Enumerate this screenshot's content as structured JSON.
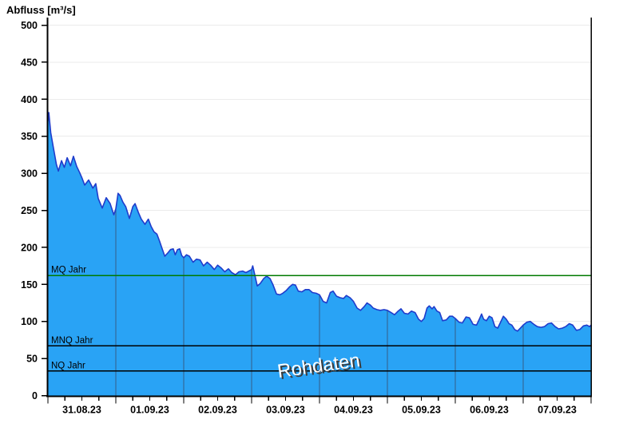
{
  "title": "Abfluss [m³/s]",
  "watermark": "Rohdaten",
  "colors": {
    "area_fill": "#29a3f5",
    "curve_line": "#1f3ccc",
    "h_grid": "#ebebeb",
    "day_grid": "#355c86",
    "mq_line": "#007a00",
    "low_lines": "#000000",
    "axis": "#000000",
    "text": "#000000",
    "watermark_fill": "#ffffff",
    "watermark_shadow": "#3c3c3c"
  },
  "chart_data": {
    "type": "area",
    "title": "Abfluss [m³/s]",
    "ylabel": "Abfluss [m³/s]",
    "xlabel": "",
    "ylim": [
      0,
      500
    ],
    "yticks": [
      0,
      50,
      100,
      150,
      200,
      250,
      300,
      350,
      400,
      450,
      500
    ],
    "x_labels": [
      "31.08.23",
      "01.09.23",
      "02.09.23",
      "03.09.23",
      "04.09.23",
      "05.09.23",
      "06.09.23",
      "07.09.23"
    ],
    "x_range_hours": [
      0,
      192
    ],
    "minor_tick_hours": 6,
    "grid": "horizontal-light, vertical-day-lines-over-fill",
    "legend_position": "none",
    "watermark": "Rohdaten",
    "reference_lines": [
      {
        "label": "MQ Jahr",
        "value": 162,
        "color": "#007a00"
      },
      {
        "label": "MNQ Jahr",
        "value": 67,
        "color": "#000000"
      },
      {
        "label": "NQ Jahr",
        "value": 33,
        "color": "#000000"
      }
    ],
    "series": [
      {
        "name": "Abfluss Rohdaten",
        "points": [
          [
            0,
            370
          ],
          [
            0.3,
            382
          ],
          [
            1,
            355
          ],
          [
            2,
            333
          ],
          [
            3,
            312
          ],
          [
            3.7,
            303
          ],
          [
            4.8,
            317
          ],
          [
            5.8,
            308
          ],
          [
            6.8,
            321
          ],
          [
            8,
            310
          ],
          [
            9,
            323
          ],
          [
            10.2,
            309
          ],
          [
            11.2,
            301
          ],
          [
            12.1,
            293
          ],
          [
            13,
            284
          ],
          [
            14.4,
            291
          ],
          [
            15.9,
            280
          ],
          [
            16.9,
            286
          ],
          [
            17.8,
            266
          ],
          [
            19.2,
            253
          ],
          [
            20.6,
            267
          ],
          [
            22,
            259
          ],
          [
            23.3,
            244
          ],
          [
            24,
            252
          ],
          [
            24.8,
            273
          ],
          [
            25.5,
            270
          ],
          [
            26.5,
            261
          ],
          [
            27.5,
            255
          ],
          [
            28.8,
            239
          ],
          [
            30,
            255
          ],
          [
            30.8,
            259
          ],
          [
            32,
            247
          ],
          [
            33,
            238
          ],
          [
            34.3,
            231
          ],
          [
            35.5,
            238
          ],
          [
            36.5,
            228
          ],
          [
            37.5,
            221
          ],
          [
            38.5,
            218
          ],
          [
            39.5,
            208
          ],
          [
            40.3,
            199
          ],
          [
            41.3,
            188
          ],
          [
            42.5,
            193
          ],
          [
            43.3,
            197
          ],
          [
            44.3,
            198
          ],
          [
            45,
            190
          ],
          [
            45.8,
            197
          ],
          [
            46.6,
            198
          ],
          [
            47.3,
            189
          ],
          [
            48,
            186
          ],
          [
            49,
            190
          ],
          [
            50,
            188
          ],
          [
            51.3,
            180
          ],
          [
            52.5,
            184
          ],
          [
            53.8,
            183
          ],
          [
            55,
            175
          ],
          [
            56.3,
            180
          ],
          [
            57.5,
            176
          ],
          [
            58.8,
            170
          ],
          [
            60,
            176
          ],
          [
            61.3,
            172
          ],
          [
            62.5,
            167
          ],
          [
            63.8,
            171
          ],
          [
            65,
            166
          ],
          [
            66.3,
            163
          ],
          [
            67.5,
            167
          ],
          [
            68.8,
            168
          ],
          [
            70,
            166
          ],
          [
            71,
            168
          ],
          [
            72,
            170
          ],
          [
            72.4,
            175
          ],
          [
            73.3,
            160
          ],
          [
            74,
            148
          ],
          [
            75,
            151
          ],
          [
            76.3,
            158
          ],
          [
            77.3,
            161
          ],
          [
            78.5,
            158
          ],
          [
            79.5,
            150
          ],
          [
            80.8,
            137
          ],
          [
            82,
            136
          ],
          [
            83,
            138
          ],
          [
            84.3,
            142
          ],
          [
            85.5,
            147
          ],
          [
            86.5,
            150
          ],
          [
            87.5,
            149
          ],
          [
            88.5,
            141
          ],
          [
            89.8,
            140
          ],
          [
            91,
            143
          ],
          [
            92.3,
            143
          ],
          [
            93.5,
            139
          ],
          [
            94.8,
            138
          ],
          [
            96,
            136
          ],
          [
            97.3,
            127
          ],
          [
            98.5,
            125
          ],
          [
            99.8,
            139
          ],
          [
            100.8,
            141
          ],
          [
            102,
            134
          ],
          [
            103.3,
            132
          ],
          [
            104.5,
            131
          ],
          [
            105.5,
            135
          ],
          [
            106.8,
            132
          ],
          [
            108,
            127
          ],
          [
            109.3,
            118
          ],
          [
            110.5,
            115
          ],
          [
            111.8,
            120
          ],
          [
            112.8,
            125
          ],
          [
            114,
            122
          ],
          [
            115,
            118
          ],
          [
            116.3,
            116
          ],
          [
            117.5,
            115
          ],
          [
            118.8,
            116
          ],
          [
            120,
            115
          ],
          [
            121.3,
            112
          ],
          [
            122.5,
            109
          ],
          [
            123.8,
            114
          ],
          [
            124.8,
            117
          ],
          [
            126,
            111
          ],
          [
            127.3,
            110
          ],
          [
            128.5,
            114
          ],
          [
            129.8,
            112
          ],
          [
            131,
            103
          ],
          [
            132,
            100
          ],
          [
            133,
            104
          ],
          [
            134,
            118
          ],
          [
            134.8,
            121
          ],
          [
            135.8,
            117
          ],
          [
            136.5,
            120
          ],
          [
            137.5,
            114
          ],
          [
            138.5,
            112
          ],
          [
            139.5,
            101
          ],
          [
            140.8,
            102
          ],
          [
            142,
            107
          ],
          [
            143,
            107
          ],
          [
            144,
            104
          ],
          [
            145.3,
            99
          ],
          [
            146.5,
            98
          ],
          [
            147.8,
            106
          ],
          [
            149,
            105
          ],
          [
            150.3,
            96
          ],
          [
            151.5,
            95
          ],
          [
            152.5,
            103
          ],
          [
            153.3,
            110
          ],
          [
            154,
            103
          ],
          [
            155,
            101
          ],
          [
            156,
            107
          ],
          [
            157,
            105
          ],
          [
            158,
            93
          ],
          [
            159,
            91
          ],
          [
            160,
            99
          ],
          [
            161,
            107
          ],
          [
            162,
            103
          ],
          [
            163,
            97
          ],
          [
            164,
            95
          ],
          [
            165,
            89
          ],
          [
            166,
            87
          ],
          [
            167,
            91
          ],
          [
            168,
            95
          ],
          [
            169.3,
            99
          ],
          [
            170.5,
            100
          ],
          [
            171.8,
            96
          ],
          [
            173,
            93
          ],
          [
            174.3,
            92
          ],
          [
            175.5,
            93
          ],
          [
            176.8,
            97
          ],
          [
            178,
            98
          ],
          [
            179.3,
            93
          ],
          [
            180.5,
            90
          ],
          [
            181.8,
            91
          ],
          [
            183,
            93
          ],
          [
            184.3,
            97
          ],
          [
            185.5,
            95
          ],
          [
            186.8,
            88
          ],
          [
            188,
            89
          ],
          [
            189.3,
            94
          ],
          [
            190.5,
            95
          ],
          [
            191.5,
            93
          ],
          [
            192,
            95
          ]
        ]
      }
    ]
  }
}
